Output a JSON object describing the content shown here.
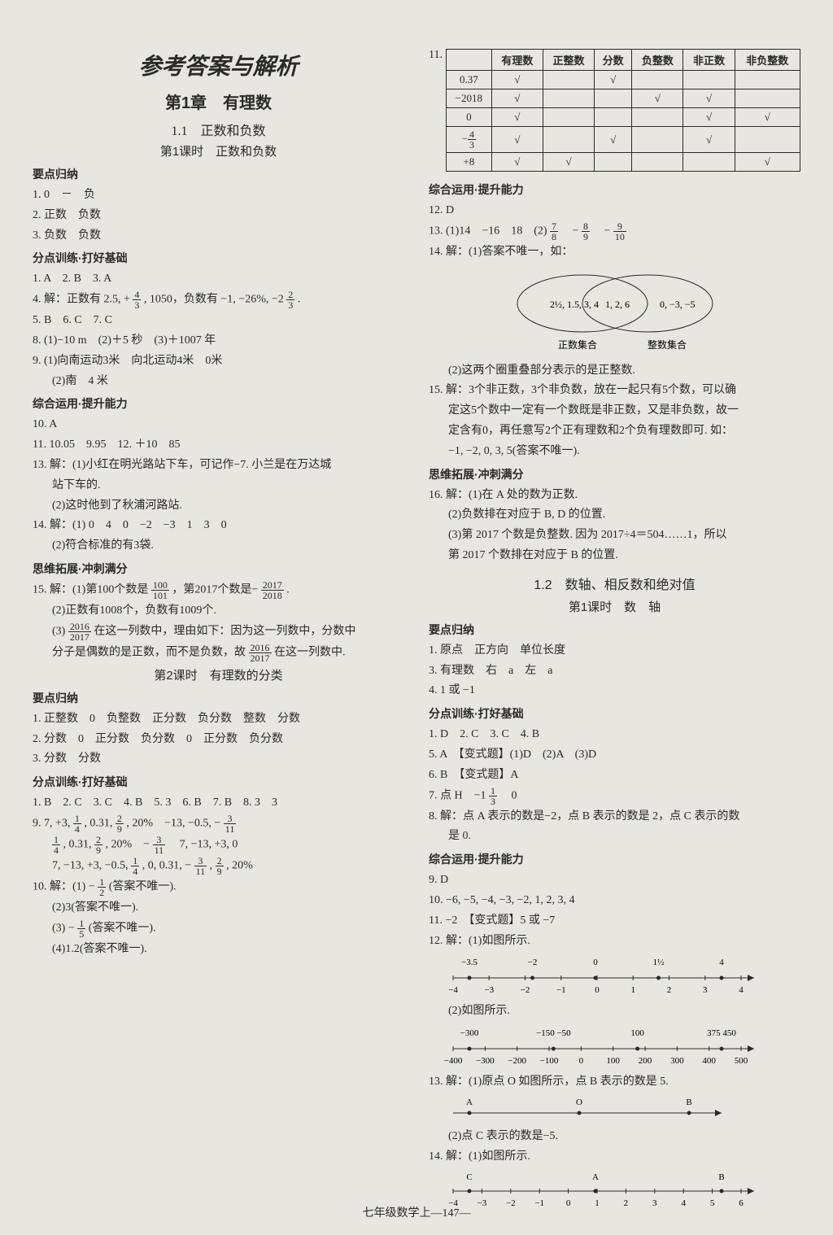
{
  "title_main": "参考答案与解析",
  "chapter": "第1章　有理数",
  "section_1_1": "1.1　正数和负数",
  "lesson_1": "第1课时　正数和负数",
  "h_points": "要点归纳",
  "h_train": "分点训练·打好基础",
  "h_comp": "综合运用·提升能力",
  "h_expand": "思维拓展·冲刺满分",
  "l1_points": {
    "p1": "1. 0　－　负",
    "p2": "2. 正数　负数",
    "p3": "3. 负数　负数"
  },
  "l1_train": {
    "t1": "1. A　2. B　3. A",
    "t4a": "4. 解：正数有 2.5, +",
    "t4b": ", 1050，负数有 −1, −26%, −2",
    "t4_frac1_n": "4",
    "t4_frac1_d": "3",
    "t4_frac2_n": "2",
    "t4_frac2_d": "3",
    "t4c": ".",
    "t5": "5. B　6. C　7. C",
    "t8": "8. (1)−10 m　(2)＋5 秒　(3)＋1007 年",
    "t9": "9. (1)向南运动3米　向北运动4米　0米",
    "t9b": "(2)南　4 米"
  },
  "l1_comp": {
    "c10": "10. A",
    "c11": "11. 10.05　9.95　12. ＋10　85",
    "c13a": "13. 解：(1)小红在明光路站下车，可记作−7. 小兰是在万达城",
    "c13b": "站下车的.",
    "c13c": "(2)这时他到了秋浦河路站.",
    "c14a": "14. 解：(1) 0　4　0　−2　−3　1　3　0",
    "c14b": "(2)符合标准的有3袋."
  },
  "l1_exp": {
    "e15a": "15. 解：(1)第100个数是",
    "e15_f1n": "100",
    "e15_f1d": "101",
    "e15b": "，第2017个数是−",
    "e15_f2n": "2017",
    "e15_f2d": "2018",
    "e15c": ".",
    "e15d": "(2)正数有1008个，负数有1009个.",
    "e15e": "(3)",
    "e15_f3n": "2016",
    "e15_f3d": "2017",
    "e15f": "在这一列数中，理由如下：因为这一列数中，分数中",
    "e15g": "分子是偶数的是正数，而不是负数，故",
    "e15_f4n": "2016",
    "e15_f4d": "2017",
    "e15h": "在这一列数中."
  },
  "lesson_2": "第2课时　有理数的分类",
  "l2_points": {
    "p1": "1. 正整数　0　负整数　正分数　负分数　整数　分数",
    "p2": "2. 分数　0　正分数　负分数　0　正分数　负分数",
    "p3": "3. 分数　分数"
  },
  "l2_train": {
    "t1": "1. B　2. C　3. C　4. B　5. 3　6. B　7. B　8. 3　3",
    "t9a": "9. 7, +3,",
    "t9b": ", 0.31,",
    "t9c": ", 20%　−13, −0.5, −",
    "t9_f1n": "1",
    "t9_f1d": "4",
    "t9_f2n": "2",
    "t9_f2d": "9",
    "t9_f3n": "3",
    "t9_f3d": "11",
    "t9l2a": "",
    "t9l2b": ", 0.31,",
    "t9l2c": ", 20%　−",
    "t9l2d": "　7, −13, +3, 0",
    "t9l3a": "7, −13, +3, −0.5,",
    "t9l3b": ", 0, 0.31, −",
    "t9l3c": ",",
    "t9l3d": ", 20%",
    "c10a": "10. 解：(1) −",
    "c10_f1n": "1",
    "c10_f1d": "2",
    "c10b": "(答案不唯一).",
    "c10c": "(2)3(答案不唯一).",
    "c10d": "(3) −",
    "c10_f2n": "1",
    "c10_f2d": "5",
    "c10e": "(答案不唯一).",
    "c10f": "(4)1.2(答案不唯一)."
  },
  "q11_table": {
    "headers": [
      "",
      "有理数",
      "正整数",
      "分数",
      "负整数",
      "非正数",
      "非负整数"
    ],
    "rows": [
      [
        "0.37",
        "√",
        "",
        "√",
        "",
        "",
        ""
      ],
      [
        "−2018",
        "√",
        "",
        "",
        "√",
        "√",
        ""
      ],
      [
        "0",
        "√",
        "",
        "",
        "",
        "√",
        "√"
      ],
      [
        "frac:-4/3",
        "√",
        "",
        "√",
        "",
        "√",
        ""
      ],
      [
        "+8",
        "√",
        "√",
        "",
        "",
        "",
        "√"
      ]
    ],
    "q11_label": "11."
  },
  "r_comp": {
    "c12": "12. D",
    "c13a": "13. (1)14　−16　18　(2)",
    "c13b": "　−",
    "c13c": "　−",
    "c13_f1n": "7",
    "c13_f1d": "8",
    "c13_f2n": "8",
    "c13_f2d": "9",
    "c13_f3n": "9",
    "c13_f3d": "10",
    "c14": "14. 解：(1)答案不唯一，如：",
    "venn_left": "2½, 1.5, 3, 4",
    "venn_mid": "1, 2, 6",
    "venn_right": "0, −3, −5",
    "venn_llabel": "正数集合",
    "venn_rlabel": "整数集合",
    "c14b": "(2)这两个圈重叠部分表示的是正整数.",
    "c15a": "15. 解：3个非正数，3个非负数，放在一起只有5个数，可以确",
    "c15b": "定这5个数中一定有一个数既是非正数，又是非负数，故一",
    "c15c": "定含有0，再任意写2个正有理数和2个负有理数即可. 如：",
    "c15d": "−1, −2, 0, 3, 5(答案不唯一)."
  },
  "r_exp": {
    "e16a": "16. 解：(1)在 A 处的数为正数.",
    "e16b": "(2)负数排在对应于 B, D 的位置.",
    "e16c": "(3)第 2017 个数是负整数. 因为 2017÷4＝504……1，所以",
    "e16d": "第 2017 个数排在对应于 B 的位置."
  },
  "section_1_2": "1.2　数轴、相反数和绝对值",
  "lesson_1_2_1": "第1课时　数　轴",
  "s12_points": {
    "p1": "1. 原点　正方向　单位长度",
    "p3": "3. 有理数　右　a　左　a",
    "p4": "4. 1 或 −1"
  },
  "s12_train": {
    "t1": "1. D　2. C　3. C　4. B",
    "t5": "5. A　【变式题】(1)D　(2)A　(3)D",
    "t6": "6. B　【变式题】A",
    "t7a": "7. 点 H　−1",
    "t7_fn": "1",
    "t7_fd": "3",
    "t7b": "　0",
    "t8a": "8. 解：点 A 表示的数是−2，点 B 表示的数是 2，点 C 表示的数",
    "t8b": "是 0."
  },
  "s12_comp": {
    "c9": "9. D",
    "c10": "10. −6, −5, −4, −3, −2, 1, 2, 3, 4",
    "c11": "11. −2　【变式题】5 或 −7",
    "c12": "12. 解：(1)如图所示.",
    "nl1_top": [
      "−3.5",
      "−2",
      "0",
      "1½",
      "4"
    ],
    "nl1_bot": [
      "−4",
      "−3",
      "−2",
      "−1",
      "0",
      "1",
      "2",
      "3",
      "4"
    ],
    "c12b": "(2)如图所示.",
    "nl2_top": [
      "−300",
      "−150 −50",
      "100",
      "375 450"
    ],
    "nl2_bot": [
      "−400",
      "−300",
      "−200",
      "−100",
      "0",
      "100",
      "200",
      "300",
      "400",
      "500"
    ],
    "c13a": "13. 解：(1)原点 O 如图所示，点 B 表示的数是 5.",
    "nl3_labels": [
      "A",
      "O",
      "B"
    ],
    "c13b": "(2)点 C 表示的数是−5.",
    "c14a": "14. 解：(1)如图所示.",
    "nl4_top": [
      "C",
      "A",
      "B"
    ],
    "nl4_bot": [
      "−4",
      "−3",
      "−2",
      "−1",
      "0",
      "1",
      "2",
      "3",
      "4",
      "5",
      "6"
    ]
  },
  "footer": "七年级数学上—147—"
}
